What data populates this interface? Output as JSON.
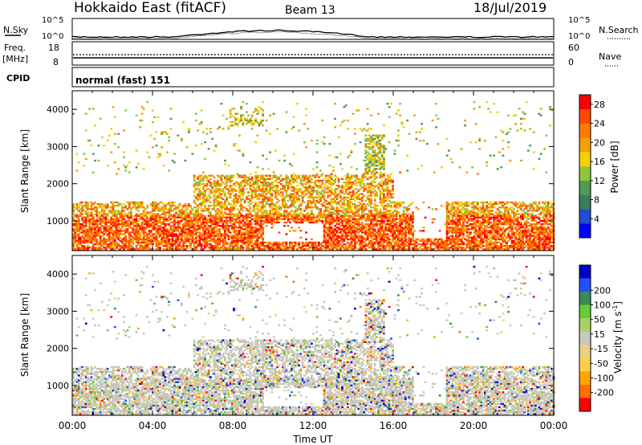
{
  "header": {
    "station": "Hokkaido East (fitACF)",
    "beam": "Beam 13",
    "date": "18/Jul/2019"
  },
  "noise_panel": {
    "left_label": "N.Sky",
    "right_label": "N.Search",
    "tick_top": "10^5",
    "tick_bottom": "10^0"
  },
  "freq_panel": {
    "label_line1": "Freq.",
    "label_line2": "[MHz]",
    "tick_top": "18",
    "tick_bottom": "8",
    "right_label": "Nave",
    "right_tick_top": "60",
    "right_tick_bottom": "0"
  },
  "cpid_panel": {
    "label": "CPID",
    "value": "normal (fast) 151"
  },
  "colors": {
    "power": [
      "#0000ff",
      "#1f4fd0",
      "#3a7d5a",
      "#4f9a55",
      "#8fc63a",
      "#f5d000",
      "#f5a000",
      "#ff7800",
      "#ff4a00",
      "#ff0000"
    ],
    "velocity_positive": [
      "#0000c8",
      "#2050ff",
      "#3a8a5a",
      "#66cc33",
      "#aad066"
    ],
    "velocity_ground": "#c8c8c0",
    "velocity_negative": [
      "#e8d08a",
      "#ffd050",
      "#ffa500",
      "#ff7000",
      "#ff0000"
    ]
  },
  "chart_data": [
    {
      "type": "heatmap",
      "name": "power",
      "ylabel": "Slant Range [km]",
      "yticks": [
        "1000",
        "2000",
        "3000",
        "4000"
      ],
      "ylim": [
        200,
        4500
      ],
      "colorbar_label": "Power [dB]",
      "colorbar_ticks": [
        "4",
        "8",
        "12",
        "16",
        "20",
        "24",
        "28"
      ],
      "colorbar_range": [
        0,
        30
      ]
    },
    {
      "type": "heatmap",
      "name": "velocity",
      "ylabel": "Slant Range [km]",
      "yticks": [
        "1000",
        "2000",
        "3000",
        "4000"
      ],
      "ylim": [
        200,
        4500
      ],
      "colorbar_label": "Velocity [m s^-1]",
      "colorbar_ticks": [
        "200",
        "100",
        "50",
        "15",
        "-15",
        "-50",
        "-100",
        "-200"
      ],
      "xlabel": "Time UT",
      "xticks": [
        "00:00",
        "04:00",
        "08:00",
        "12:00",
        "16:00",
        "20:00",
        "00:00"
      ],
      "xlim": [
        0,
        24
      ]
    }
  ]
}
